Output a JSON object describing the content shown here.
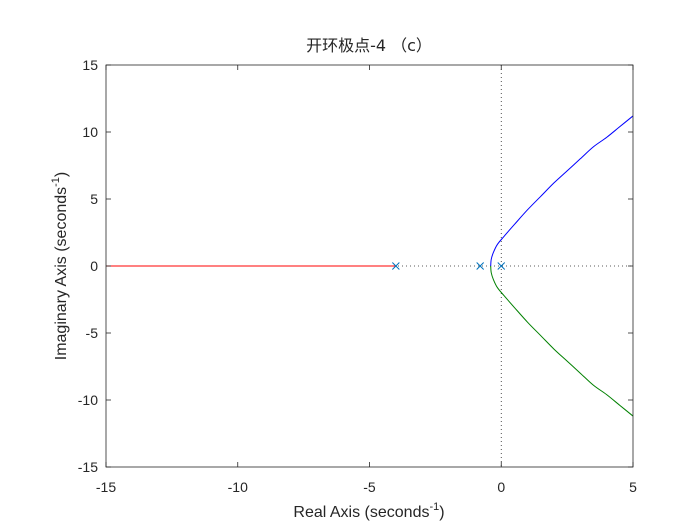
{
  "chart_data": {
    "type": "line",
    "title": "开环极点-4 （c）",
    "xlabel": {
      "text": "Real Axis (seconds",
      "sup": "-1",
      "close": ")"
    },
    "ylabel": {
      "text": "Imaginary Axis (seconds",
      "sup": "-1",
      "close": ")"
    },
    "xlim": [
      -15,
      5
    ],
    "ylim": [
      -15,
      15
    ],
    "xticks": [
      -15,
      -10,
      -5,
      0,
      5
    ],
    "yticks": [
      -15,
      -10,
      -5,
      0,
      5,
      10,
      15
    ],
    "xtick_labels": [
      "-15",
      "-10",
      "-5",
      "0",
      "5"
    ],
    "ytick_labels": [
      "-15",
      "-10",
      "-5",
      "0",
      "5",
      "10",
      "15"
    ],
    "grid": false,
    "box": true,
    "colors": {
      "axes": "#262626",
      "branch_upper": "#0000ff",
      "branch_lower": "#008000",
      "branch_real": "#ff0000",
      "pole_marker": "#0072bd",
      "reference_lines": "#262626"
    },
    "series": [
      {
        "color": "#0000ff",
        "x": [
          -0.4,
          -0.38,
          -0.3,
          -0.15,
          0.1,
          0.5,
          1.0,
          1.5,
          2.0,
          2.5,
          3.0,
          3.5,
          4.0,
          4.5,
          5.0
        ],
        "y": [
          0,
          0.5,
          1.0,
          1.6,
          2.2,
          3.1,
          4.2,
          5.2,
          6.2,
          7.1,
          8.0,
          8.9,
          9.6,
          10.4,
          11.2
        ]
      },
      {
        "color": "#008000",
        "x": [
          -0.4,
          -0.38,
          -0.3,
          -0.15,
          0.1,
          0.5,
          1.0,
          1.5,
          2.0,
          2.5,
          3.0,
          3.5,
          4.0,
          4.5,
          5.0
        ],
        "y": [
          0,
          -0.5,
          -1.0,
          -1.6,
          -2.2,
          -3.1,
          -4.2,
          -5.2,
          -6.2,
          -7.1,
          -8.0,
          -8.9,
          -9.6,
          -10.4,
          -11.2
        ]
      },
      {
        "color": "#ff0000",
        "x": [
          -15,
          -4
        ],
        "y": [
          0,
          0
        ]
      }
    ],
    "poles": [
      {
        "x": -4,
        "y": 0
      },
      {
        "x": -0.8,
        "y": 0
      },
      {
        "x": 0,
        "y": 0
      }
    ],
    "reference_lines": {
      "horizontal_y": 0,
      "vertical_x": 0,
      "style": "dotted"
    }
  }
}
